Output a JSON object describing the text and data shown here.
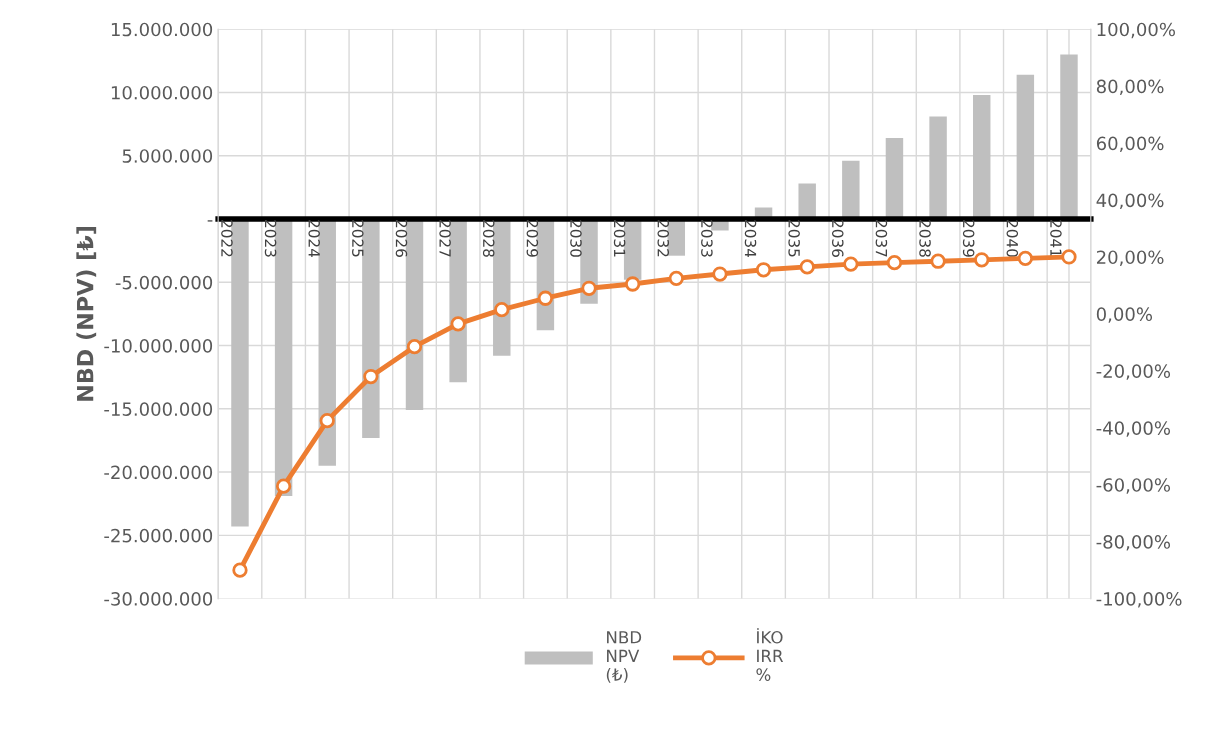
{
  "chart_data": {
    "type": "bar",
    "ylabel": "NBD (NPV) [₺]",
    "categories": [
      "2022",
      "2023",
      "2024",
      "2025",
      "2026",
      "2027",
      "2028",
      "2029",
      "2030",
      "2031",
      "2032",
      "2033",
      "2034",
      "2035",
      "2036",
      "2037",
      "2038",
      "2039",
      "2040",
      "2041"
    ],
    "series": [
      {
        "name": "NBD\nNPV\n(₺)",
        "color": "#bfbfbf",
        "values": [
          -24300000,
          -21900000,
          -19500000,
          -17300000,
          -15100000,
          -12900000,
          -10800000,
          -8800000,
          -6700000,
          -4800000,
          -2900000,
          -900000,
          900000,
          2800000,
          4600000,
          6400000,
          8100000,
          9800000,
          11400000,
          13000000
        ]
      },
      {
        "name": "İKO\nIRR\n%",
        "type": "line",
        "axis": "y2",
        "color": "#ed7d31",
        "marker": "circle",
        "values": [
          -90,
          -60.5,
          -37.5,
          -22,
          -11.5,
          -3.5,
          1.5,
          5.5,
          9,
          10.5,
          12.5,
          14,
          15.5,
          16.5,
          17.5,
          18,
          18.5,
          19,
          19.5,
          20
        ]
      }
    ],
    "ylim": [
      -30000000,
      15000000
    ],
    "yticks": [
      {
        "value": -30000000,
        "label": "-30.000.000"
      },
      {
        "value": -25000000,
        "label": "-25.000.000"
      },
      {
        "value": -20000000,
        "label": "-20.000.000"
      },
      {
        "value": -15000000,
        "label": "-15.000.000"
      },
      {
        "value": -10000000,
        "label": "-10.000.000"
      },
      {
        "value": -5000000,
        "label": "-5.000.000"
      },
      {
        "value": 0,
        "label": "-"
      },
      {
        "value": 5000000,
        "label": "5.000.000"
      },
      {
        "value": 10000000,
        "label": "10.000.000"
      },
      {
        "value": 15000000,
        "label": "15.000.000"
      }
    ],
    "y2lim": [
      -100,
      100
    ],
    "y2ticks": [
      {
        "value": -100,
        "label": "-100,00%"
      },
      {
        "value": -80,
        "label": "-80,00%"
      },
      {
        "value": -60,
        "label": "-60,00%"
      },
      {
        "value": -40,
        "label": "-40,00%"
      },
      {
        "value": -20,
        "label": "-20,00%"
      },
      {
        "value": 0,
        "label": "0,00%"
      },
      {
        "value": 20,
        "label": "20,00%"
      },
      {
        "value": 40,
        "label": "40,00%"
      },
      {
        "value": 60,
        "label": "60,00%"
      },
      {
        "value": 80,
        "label": "80,00%"
      },
      {
        "value": 100,
        "label": "100,00%"
      }
    ],
    "grid": true,
    "legend": "bottom"
  }
}
